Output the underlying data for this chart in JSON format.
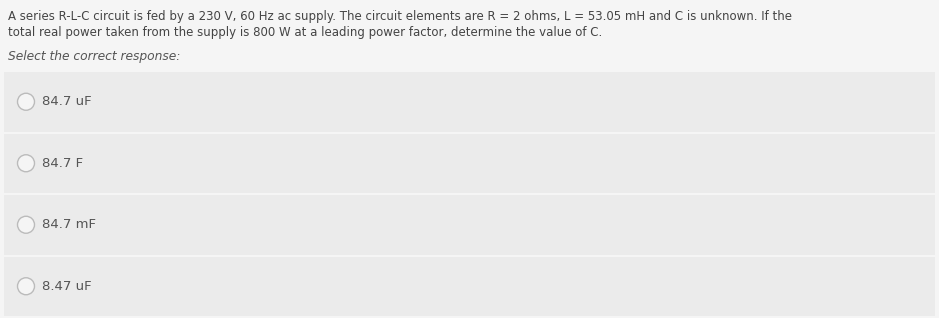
{
  "background_color": "#f5f5f5",
  "question_text_line1": "A series R-L-C circuit is fed by a 230 V, 60 Hz ac supply. The circuit elements are R = 2 ohms, L = 53.05 mH and C is unknown. If the",
  "question_text_line2": "total real power taken from the supply is 800 W at a leading power factor, determine the value of C.",
  "select_text": "Select the correct response:",
  "options": [
    "84.7 uF",
    "84.7 F",
    "84.7 mF",
    "8.47 uF"
  ],
  "option_box_color": "#ebebeb",
  "option_text_color": "#555555",
  "question_text_color": "#444444",
  "select_text_color": "#555555",
  "circle_edge_color": "#bbbbbb",
  "circle_face_color": "#f5f5f5",
  "font_size_question": 8.5,
  "font_size_select": 8.8,
  "font_size_option": 9.5
}
